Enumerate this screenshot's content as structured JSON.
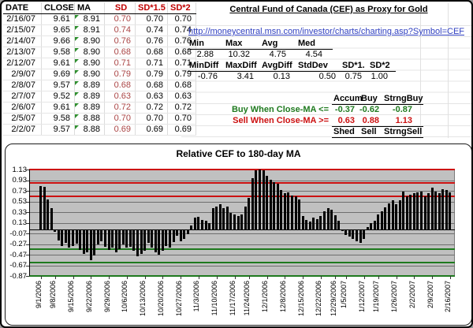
{
  "table": {
    "headers": [
      "DATE",
      "CLOSE",
      "MA",
      "SD",
      "SD*1.5",
      "SD*2"
    ],
    "rows": [
      [
        "2/16/07",
        "9.61",
        "8.91",
        "0.70",
        "0.70",
        "0.70"
      ],
      [
        "2/15/07",
        "9.65",
        "8.91",
        "0.74",
        "0.74",
        "0.74"
      ],
      [
        "2/14/07",
        "9.66",
        "8.90",
        "0.76",
        "0.76",
        "0.76"
      ],
      [
        "2/13/07",
        "9.58",
        "8.90",
        "0.68",
        "0.68",
        "0.68"
      ],
      [
        "2/12/07",
        "9.61",
        "8.90",
        "0.71",
        "0.71",
        "0.71"
      ],
      [
        "2/9/07",
        "9.69",
        "8.90",
        "0.79",
        "0.79",
        "0.79"
      ],
      [
        "2/8/07",
        "9.57",
        "8.89",
        "0.68",
        "0.68",
        "0.68"
      ],
      [
        "2/7/07",
        "9.52",
        "8.89",
        "0.63",
        "0.63",
        "0.63"
      ],
      [
        "2/6/07",
        "9.61",
        "8.89",
        "0.72",
        "0.72",
        "0.72"
      ],
      [
        "2/5/07",
        "9.58",
        "8.88",
        "0.70",
        "0.70",
        "0.70"
      ],
      [
        "2/2/07",
        "9.57",
        "8.88",
        "0.69",
        "0.69",
        "0.69"
      ]
    ]
  },
  "info": {
    "title": "Central Fund of Canada (CEF) as Proxy for Gold",
    "url": "http://moneycentral.msn.com/investor/charts/charting.asp?Symbol=CEF",
    "stats1_headers": [
      "Min",
      "Max",
      "Avg",
      "Med"
    ],
    "stats1_values": [
      "2.88",
      "10.32",
      "4.75",
      "4.54"
    ],
    "stats2_headers": [
      "MinDiff",
      "MaxDiff",
      "AvgDiff",
      "StdDev",
      "SD*1.",
      "SD*2"
    ],
    "stats2_values": [
      "-0.76",
      "3.41",
      "0.13",
      "0.50",
      "0.75",
      "1.00"
    ],
    "signal_top_headers": [
      "Accum",
      "Buy",
      "StrngBuy"
    ],
    "buy_label": "Buy When Close-MA <=",
    "buy_values": [
      "-0.37",
      "-0.62",
      "-0.87"
    ],
    "sell_label": "Sell When Close-MA >=",
    "sell_values": [
      "0.63",
      "0.88",
      "1.13"
    ],
    "signal_bottom_headers": [
      "Shed",
      "Sell",
      "StrngSell"
    ]
  },
  "colors": {
    "header_red": "#c00000",
    "sd_value_red": "#aa4545",
    "sell_red": "#cc1111",
    "buy_green": "#1f7a1f",
    "link_blue": "#3040c0",
    "plot_bg": "#c0c0c0",
    "flag_green": "#2f8f2f"
  },
  "chart_data": {
    "type": "bar",
    "title": "Relative CEF to 180-day MA",
    "xlabel": "",
    "ylabel": "",
    "ylim": [
      -0.87,
      1.13
    ],
    "yticks": [
      "1.13",
      "0.93",
      "0.73",
      "0.53",
      "0.33",
      "0.13",
      "-0.07",
      "-0.27",
      "-0.47",
      "-0.67",
      "-0.87"
    ],
    "grid": true,
    "legend": false,
    "plot_bg": "#c0c0c0",
    "bar_color": "#000000",
    "sell_lines": [
      0.63,
      0.88,
      1.13
    ],
    "sell_line_color": "#cc1111",
    "buy_lines": [
      -0.37,
      -0.62,
      -0.87
    ],
    "buy_line_color": "#1f7a1f",
    "x_tick_labels": [
      "9/1/2006",
      "9/8/2006",
      "9/15/2006",
      "9/22/2006",
      "9/29/2006",
      "10/6/2006",
      "10/13/2006",
      "10/20/2006",
      "10/27/2006",
      "11/3/2006",
      "11/10/2006",
      "11/17/2006",
      "11/24/2006",
      "12/1/2006",
      "12/8/2006",
      "12/15/2006",
      "12/22/2006",
      "12/29/2006",
      "1/5/2007",
      "1/12/2007",
      "1/19/2007",
      "1/26/2007",
      "2/2/2007",
      "2/9/2007",
      "2/16/2007"
    ],
    "x_tick_indices": [
      0,
      4,
      9,
      14,
      19,
      24,
      29,
      34,
      39,
      44,
      49,
      54,
      58,
      63,
      68,
      73,
      78,
      82,
      85,
      90,
      94,
      99,
      104,
      109,
      114
    ],
    "x": [
      "9/1/2006",
      "9/5/2006",
      "9/6/2006",
      "9/7/2006",
      "9/8/2006",
      "9/11/2006",
      "9/12/2006",
      "9/13/2006",
      "9/14/2006",
      "9/15/2006",
      "9/18/2006",
      "9/19/2006",
      "9/20/2006",
      "9/21/2006",
      "9/22/2006",
      "9/25/2006",
      "9/26/2006",
      "9/27/2006",
      "9/28/2006",
      "9/29/2006",
      "10/2/2006",
      "10/3/2006",
      "10/4/2006",
      "10/5/2006",
      "10/6/2006",
      "10/9/2006",
      "10/10/2006",
      "10/11/2006",
      "10/12/2006",
      "10/13/2006",
      "10/16/2006",
      "10/17/2006",
      "10/18/2006",
      "10/19/2006",
      "10/20/2006",
      "10/23/2006",
      "10/24/2006",
      "10/25/2006",
      "10/26/2006",
      "10/27/2006",
      "10/30/2006",
      "10/31/2006",
      "11/1/2006",
      "11/2/2006",
      "11/3/2006",
      "11/6/2006",
      "11/7/2006",
      "11/8/2006",
      "11/9/2006",
      "11/10/2006",
      "11/13/2006",
      "11/14/2006",
      "11/15/2006",
      "11/16/2006",
      "11/17/2006",
      "11/20/2006",
      "11/21/2006",
      "11/22/2006",
      "11/24/2006",
      "11/27/2006",
      "11/28/2006",
      "11/29/2006",
      "11/30/2006",
      "12/1/2006",
      "12/4/2006",
      "12/5/2006",
      "12/6/2006",
      "12/7/2006",
      "12/8/2006",
      "12/11/2006",
      "12/12/2006",
      "12/13/2006",
      "12/14/2006",
      "12/15/2006",
      "12/18/2006",
      "12/19/2006",
      "12/20/2006",
      "12/21/2006",
      "12/22/2006",
      "12/26/2006",
      "12/27/2006",
      "12/28/2006",
      "12/29/2006",
      "1/3/2007",
      "1/4/2007",
      "1/5/2007",
      "1/8/2007",
      "1/9/2007",
      "1/10/2007",
      "1/11/2007",
      "1/12/2007",
      "1/16/2007",
      "1/17/2007",
      "1/18/2007",
      "1/19/2007",
      "1/22/2007",
      "1/23/2007",
      "1/24/2007",
      "1/25/2007",
      "1/26/2007",
      "1/29/2007",
      "1/30/2007",
      "1/31/2007",
      "2/1/2007",
      "2/2/2007",
      "2/5/2007",
      "2/6/2007",
      "2/7/2007",
      "2/8/2007",
      "2/9/2007",
      "2/12/2007",
      "2/13/2007",
      "2/14/2007",
      "2/15/2007",
      "2/16/2007"
    ],
    "values": [
      0.82,
      0.8,
      0.57,
      0.4,
      -0.04,
      -0.2,
      -0.3,
      -0.25,
      -0.34,
      -0.3,
      -0.27,
      -0.38,
      -0.45,
      -0.42,
      -0.57,
      -0.48,
      -0.28,
      -0.22,
      -0.32,
      -0.38,
      -0.33,
      -0.42,
      -0.36,
      -0.28,
      -0.34,
      -0.32,
      -0.4,
      -0.5,
      -0.46,
      -0.4,
      -0.25,
      -0.33,
      -0.42,
      -0.47,
      -0.4,
      -0.3,
      -0.34,
      -0.24,
      -0.12,
      -0.22,
      -0.18,
      -0.08,
      0.08,
      0.22,
      0.24,
      0.18,
      0.16,
      0.12,
      0.4,
      0.44,
      0.48,
      0.4,
      0.43,
      0.32,
      0.28,
      0.25,
      0.29,
      0.44,
      0.6,
      0.96,
      1.12,
      1.13,
      1.11,
      1.01,
      0.94,
      0.9,
      0.86,
      0.75,
      0.68,
      0.7,
      0.64,
      0.62,
      0.57,
      0.25,
      0.18,
      0.15,
      0.22,
      0.2,
      0.25,
      0.35,
      0.4,
      0.38,
      0.27,
      0.17,
      -0.03,
      -0.1,
      -0.13,
      -0.17,
      -0.22,
      -0.25,
      -0.17,
      0.05,
      0.12,
      0.17,
      0.28,
      0.35,
      0.42,
      0.5,
      0.55,
      0.48,
      0.55,
      0.72,
      0.62,
      0.65,
      0.69,
      0.7,
      0.72,
      0.63,
      0.68,
      0.79,
      0.71,
      0.68,
      0.76,
      0.74,
      0.7
    ]
  }
}
